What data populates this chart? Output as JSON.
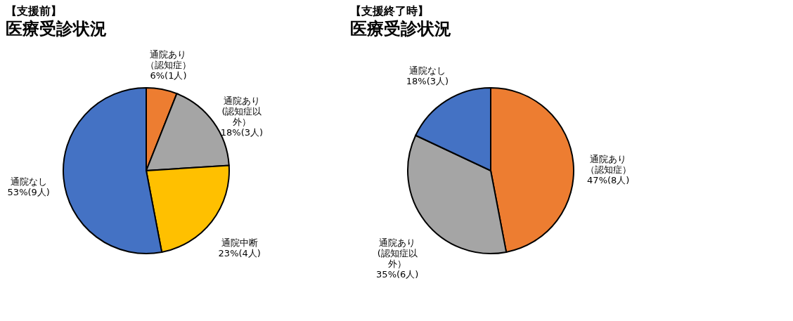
{
  "chart_data": [
    {
      "type": "pie",
      "title": "【支援前】",
      "subtitle": "医療受診状況",
      "categories": [
        "通院あり（認知症）",
        "通院あり(認知症以外）",
        "通院中断",
        "通院なし"
      ],
      "values": [
        6,
        18,
        23,
        53
      ],
      "colors": [
        "#ed7d31",
        "#a5a5a5",
        "#ffc000",
        "#4472c4"
      ],
      "value_labels": [
        "6%(1人)",
        "18%(3人)",
        "23%(4人)",
        "53%(9人)"
      ]
    },
    {
      "type": "pie",
      "title": "【支援終了時】",
      "subtitle": "医療受診状況",
      "categories": [
        "通院あり（認知症）",
        "通院あり(認知症以外）",
        "通院なし"
      ],
      "values": [
        47,
        35,
        18
      ],
      "colors": [
        "#ed7d31",
        "#a5a5a5",
        "#4472c4"
      ],
      "value_labels": [
        "47%(8人)",
        "35%(6人)",
        "18%(3人)"
      ]
    }
  ]
}
